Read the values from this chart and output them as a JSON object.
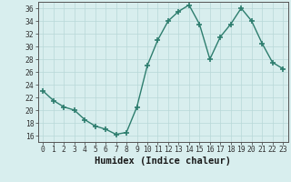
{
  "x": [
    0,
    1,
    2,
    3,
    4,
    5,
    6,
    7,
    8,
    9,
    10,
    11,
    12,
    13,
    14,
    15,
    16,
    17,
    18,
    19,
    20,
    21,
    22,
    23
  ],
  "y": [
    23,
    21.5,
    20.5,
    20,
    18.5,
    17.5,
    17,
    16.2,
    16.5,
    20.5,
    27,
    31,
    34,
    35.5,
    36.5,
    33.5,
    28,
    31.5,
    33.5,
    36,
    34,
    30.5,
    27.5,
    26.5
  ],
  "line_color": "#2d7d6e",
  "marker": "+",
  "marker_color": "#2d7d6e",
  "bg_color": "#d8eeee",
  "grid_color": "#b8d8d8",
  "xlabel": "Humidex (Indice chaleur)",
  "ylim": [
    15,
    37
  ],
  "xlim": [
    -0.5,
    23.5
  ],
  "yticks": [
    16,
    18,
    20,
    22,
    24,
    26,
    28,
    30,
    32,
    34,
    36
  ],
  "xticks": [
    0,
    1,
    2,
    3,
    4,
    5,
    6,
    7,
    8,
    9,
    10,
    11,
    12,
    13,
    14,
    15,
    16,
    17,
    18,
    19,
    20,
    21,
    22,
    23
  ],
  "tick_label_fontsize": 5.8,
  "xlabel_fontsize": 7.5,
  "line_width": 1.0,
  "marker_size": 5
}
